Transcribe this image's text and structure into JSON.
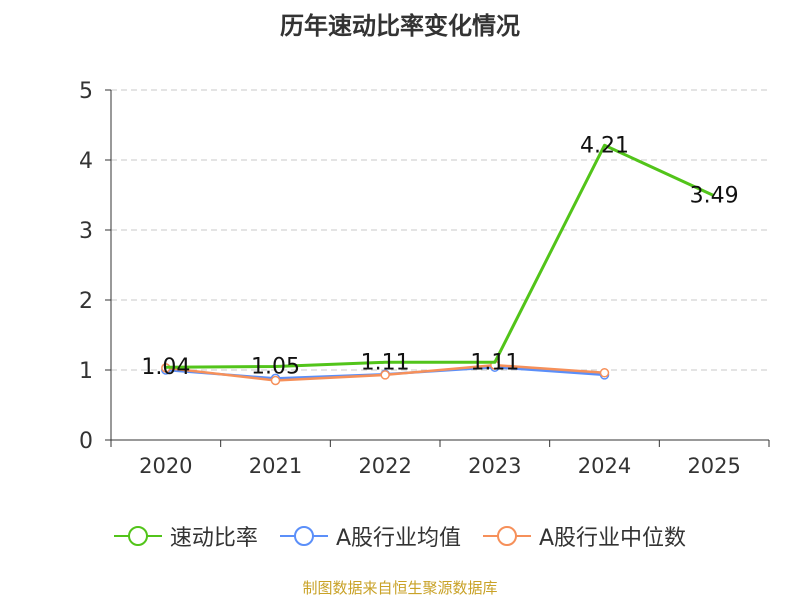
{
  "chart_data": {
    "type": "line",
    "title": "历年速动比率变化情况",
    "categories": [
      "2020",
      "2021",
      "2022",
      "2023",
      "2024",
      "2025"
    ],
    "ylim": [
      0,
      5
    ],
    "yticks": [
      0,
      1,
      2,
      3,
      4,
      5
    ],
    "grid": true,
    "legend_position": "bottom",
    "series": [
      {
        "name": "速动比率",
        "color": "#52c41a",
        "values": [
          1.04,
          1.05,
          1.11,
          1.11,
          4.21,
          3.49
        ],
        "show_labels": true,
        "show_markers": false
      },
      {
        "name": "A股行业均值",
        "color": "#5b8ff9",
        "values": [
          1.0,
          0.88,
          0.94,
          1.04,
          0.93,
          null
        ],
        "show_labels": false,
        "show_markers": true
      },
      {
        "name": "A股行业中位数",
        "color": "#f6905a",
        "values": [
          1.03,
          0.85,
          0.93,
          1.07,
          0.96,
          null
        ],
        "show_labels": false,
        "show_markers": true
      }
    ],
    "data_labels": [
      "1.04",
      "1.05",
      "1.11",
      "1.11",
      "4.21",
      "3.49"
    ]
  },
  "footer": {
    "source": "制图数据来自恒生聚源数据库"
  }
}
